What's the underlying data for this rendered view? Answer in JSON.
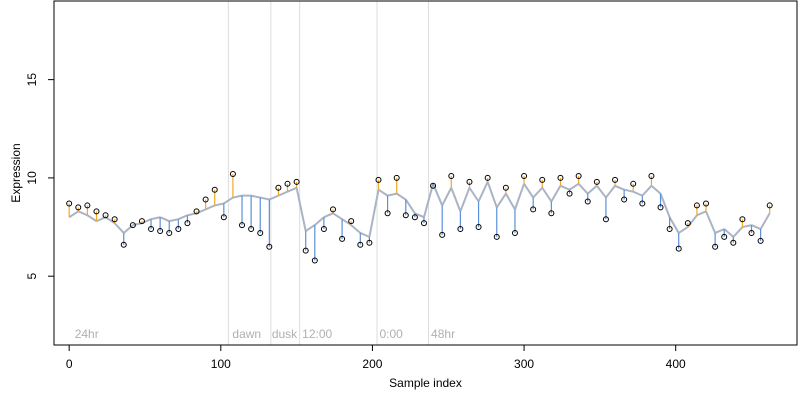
{
  "chart_data": {
    "type": "line",
    "title": "",
    "xlabel": "Sample index",
    "ylabel": "Expression",
    "xlim": [
      -10,
      480
    ],
    "ylim": [
      1.5,
      19
    ],
    "x_ticks": [
      0,
      100,
      200,
      300,
      400
    ],
    "y_ticks": [
      5,
      10,
      15
    ],
    "grid": false,
    "legend": "none",
    "colors": {
      "up_segment": "#f5a623",
      "down_segment": "#5b8fd9",
      "trend_line": "#aab4c4",
      "points": "#000000",
      "phase_line": "#dddddd",
      "phase_label": "#b0b0b0"
    },
    "phase_boundaries": [
      105,
      133,
      152,
      203,
      237
    ],
    "phase_labels": [
      {
        "x": 3,
        "label": "24hr"
      },
      {
        "x": 107,
        "label": "dawn"
      },
      {
        "x": 133,
        "label": "dusk"
      },
      {
        "x": 153,
        "label": "12:00"
      },
      {
        "x": 204,
        "label": "0:00"
      },
      {
        "x": 238,
        "label": "48hr"
      }
    ],
    "series": [
      {
        "x": [
          0,
          6,
          12,
          18,
          24,
          30,
          36,
          42,
          48,
          54,
          60,
          66,
          72,
          78,
          84,
          90,
          96,
          102,
          108,
          114,
          120,
          126,
          132,
          138,
          144,
          150,
          156,
          162,
          168,
          174,
          180,
          186,
          192,
          198,
          204,
          210,
          216,
          222,
          228,
          234,
          240,
          246,
          252,
          258,
          264,
          270,
          276,
          282,
          288,
          294,
          300,
          306,
          312,
          318,
          324,
          330,
          336,
          342,
          348,
          354,
          360,
          366,
          372,
          378,
          384,
          390,
          396,
          402,
          408,
          414,
          420,
          426,
          432,
          438,
          444,
          450,
          456,
          462
        ],
        "y_mean": [
          8.0,
          8.3,
          8.1,
          7.8,
          8.0,
          7.7,
          7.2,
          7.6,
          7.7,
          7.9,
          8.0,
          7.8,
          7.9,
          8.1,
          8.2,
          8.4,
          8.6,
          8.7,
          9.0,
          9.1,
          9.1,
          9.0,
          8.9,
          9.1,
          9.3,
          9.5,
          7.3,
          7.6,
          8.0,
          8.2,
          7.9,
          7.6,
          7.2,
          7.0,
          9.4,
          9.1,
          9.2,
          8.9,
          8.2,
          8.0,
          9.7,
          8.6,
          9.5,
          8.3,
          9.5,
          8.8,
          9.8,
          8.5,
          9.2,
          8.4,
          9.7,
          9.0,
          9.5,
          8.8,
          9.6,
          9.4,
          9.7,
          9.2,
          9.6,
          9.0,
          9.6,
          9.4,
          9.3,
          9.1,
          9.6,
          9.2,
          8.0,
          7.2,
          7.5,
          8.1,
          8.3,
          7.2,
          7.4,
          7.0,
          7.5,
          7.6,
          7.4,
          8.2
        ],
        "y_points": [
          8.7,
          8.5,
          8.6,
          8.3,
          8.1,
          7.9,
          6.6,
          7.6,
          7.8,
          7.4,
          7.3,
          7.2,
          7.4,
          7.7,
          8.3,
          8.9,
          9.4,
          8.0,
          10.2,
          7.6,
          7.4,
          7.2,
          6.5,
          9.5,
          9.7,
          9.8,
          6.3,
          5.8,
          7.4,
          8.4,
          6.9,
          7.8,
          6.6,
          6.7,
          9.9,
          8.2,
          10.0,
          8.1,
          8.0,
          7.7,
          9.6,
          7.1,
          10.1,
          7.4,
          9.8,
          7.5,
          10.0,
          7.0,
          9.5,
          7.2,
          10.1,
          8.4,
          9.9,
          8.2,
          10.0,
          9.2,
          10.1,
          8.8,
          9.8,
          7.9,
          9.9,
          8.9,
          9.7,
          8.7,
          10.1,
          8.5,
          7.4,
          6.4,
          7.7,
          8.6,
          8.7,
          6.5,
          7.0,
          6.7,
          7.9,
          7.2,
          6.8,
          8.6
        ]
      }
    ]
  }
}
